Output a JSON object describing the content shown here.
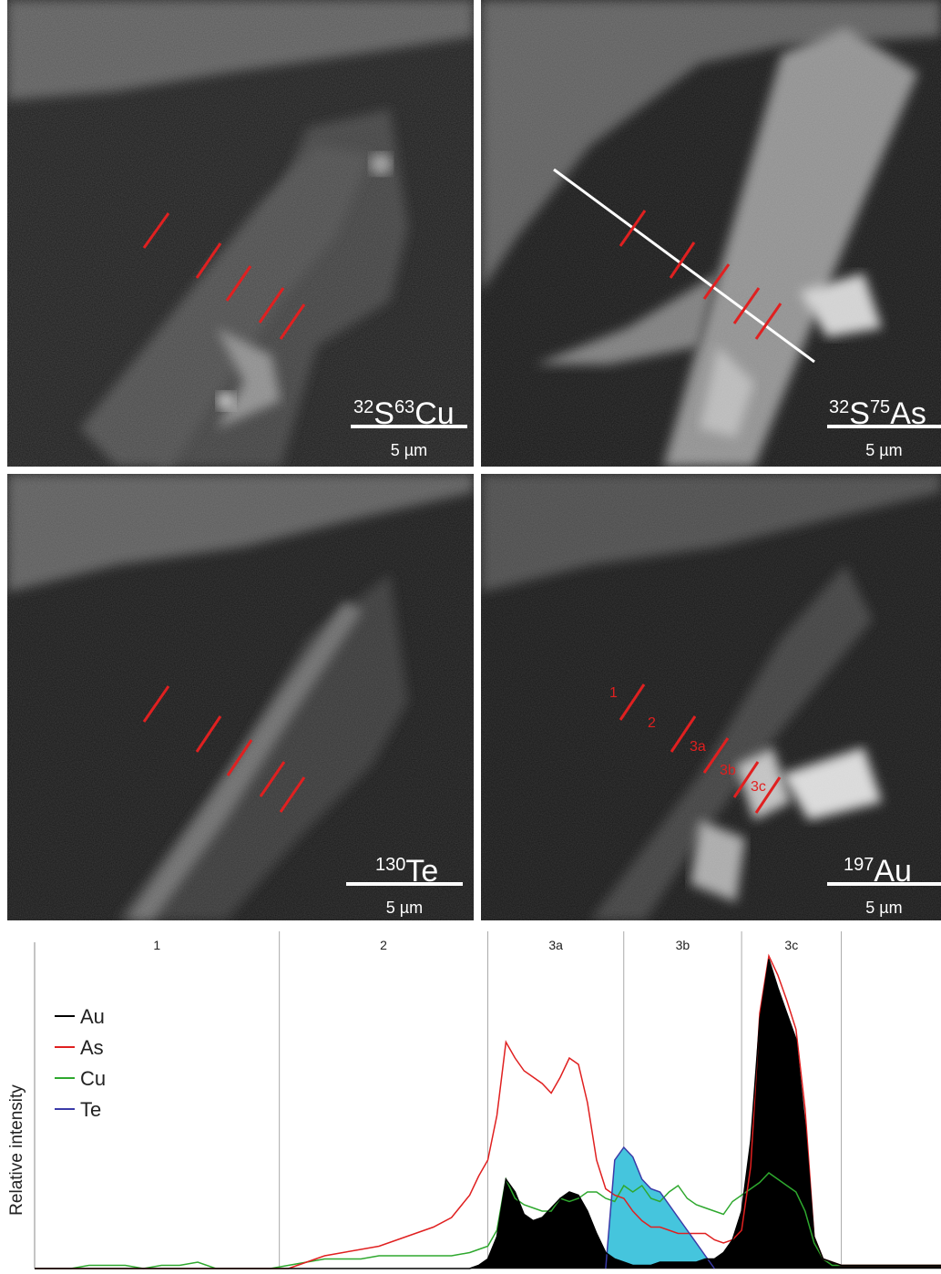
{
  "panels": [
    {
      "id": "cu",
      "element_sup": "32",
      "element": "S",
      "element2_sup": "63",
      "element2": "Cu",
      "scale": "5 µm"
    },
    {
      "id": "as",
      "element_sup": "32",
      "element": "S",
      "element2_sup": "75",
      "element2": "As",
      "scale": "5 µm"
    },
    {
      "id": "te",
      "element_sup": "130",
      "element": "Te",
      "element2_sup": "",
      "element2": "",
      "scale": "5 µm"
    },
    {
      "id": "au",
      "element_sup": "197",
      "element": "Au",
      "element2_sup": "",
      "element2": "",
      "scale": "5 µm"
    }
  ],
  "au_region_labels": [
    "1",
    "2",
    "3a",
    "3b",
    "3c"
  ],
  "colors": {
    "Au": "#000000",
    "As": "#e02020",
    "Cu": "#2ea82e",
    "Te": "#3a3aa8",
    "te_fill": "#45c5dd",
    "marker": "#e02020",
    "profile_line": "#ffffff"
  },
  "chart_data": {
    "type": "line",
    "ylabel": "Relative intensity",
    "xlabel": "",
    "x_units": "index along profile (0–100)",
    "ylim": [
      0,
      100
    ],
    "segments": [
      {
        "label": "1",
        "start": 0,
        "end": 27
      },
      {
        "label": "2",
        "start": 27,
        "end": 50
      },
      {
        "label": "3a",
        "start": 50,
        "end": 65
      },
      {
        "label": "3b",
        "start": 65,
        "end": 78
      },
      {
        "label": "3c",
        "start": 78,
        "end": 89
      }
    ],
    "x": [
      0,
      2,
      4,
      6,
      8,
      10,
      12,
      14,
      16,
      18,
      20,
      22,
      24,
      26,
      28,
      30,
      32,
      34,
      36,
      38,
      40,
      42,
      44,
      46,
      48,
      49,
      50,
      51,
      52,
      53,
      54,
      55,
      56,
      57,
      58,
      59,
      60,
      61,
      62,
      63,
      64,
      65,
      66,
      67,
      68,
      69,
      70,
      71,
      72,
      73,
      74,
      75,
      76,
      77,
      78,
      79,
      80,
      81,
      82,
      83,
      84,
      85,
      86,
      87,
      88,
      89,
      90,
      92,
      94,
      96,
      98,
      100
    ],
    "series": [
      {
        "name": "Au",
        "values": [
          0,
          0,
          0,
          0,
          0,
          0,
          0,
          0,
          0,
          0,
          0,
          0,
          0,
          0,
          0,
          0,
          0,
          0,
          0,
          0,
          0,
          0,
          0,
          0,
          0,
          1,
          3,
          10,
          28,
          24,
          17,
          15,
          16,
          19,
          22,
          24,
          23,
          18,
          11,
          5,
          3,
          2,
          1,
          1,
          1,
          2,
          2,
          2,
          2,
          2,
          3,
          3,
          5,
          9,
          18,
          40,
          78,
          97,
          88,
          80,
          72,
          45,
          10,
          3,
          2,
          1,
          1,
          1,
          1,
          1,
          1,
          1
        ]
      },
      {
        "name": "As",
        "values": [
          0,
          0,
          0,
          0,
          0,
          0,
          0,
          0,
          0,
          0,
          0,
          0,
          0,
          0,
          0,
          2,
          4,
          5,
          6,
          7,
          9,
          11,
          13,
          16,
          23,
          29,
          34,
          48,
          71,
          66,
          62,
          60,
          58,
          55,
          60,
          66,
          64,
          52,
          34,
          25,
          23,
          22,
          18,
          15,
          13,
          13,
          12,
          11,
          11,
          11,
          11,
          9,
          8,
          9,
          12,
          32,
          80,
          98,
          92,
          84,
          75,
          50,
          10,
          3,
          2,
          1,
          1,
          1,
          1,
          1,
          1,
          1
        ]
      },
      {
        "name": "Cu",
        "values": [
          0,
          0,
          0,
          1,
          1,
          1,
          0,
          1,
          1,
          2,
          0,
          0,
          0,
          0,
          1,
          2,
          3,
          3,
          3,
          4,
          4,
          4,
          4,
          4,
          5,
          6,
          7,
          12,
          28,
          22,
          20,
          19,
          18,
          18,
          22,
          21,
          22,
          24,
          24,
          22,
          21,
          26,
          24,
          26,
          22,
          21,
          24,
          26,
          22,
          20,
          19,
          18,
          17,
          21,
          23,
          25,
          27,
          30,
          28,
          26,
          24,
          18,
          8,
          3,
          1,
          1,
          1,
          1,
          1,
          1,
          1,
          1
        ]
      },
      {
        "name": "Te",
        "values": [
          0,
          0,
          0,
          0,
          0,
          0,
          0,
          0,
          0,
          0,
          0,
          0,
          0,
          0,
          0,
          0,
          0,
          0,
          0,
          0,
          0,
          0,
          0,
          0,
          0,
          0,
          0,
          0,
          0,
          0,
          0,
          0,
          0,
          0,
          0,
          0,
          0,
          0,
          0,
          0,
          34,
          38,
          35,
          28,
          25,
          24,
          20,
          16,
          12,
          8,
          4,
          0,
          0,
          0,
          0,
          0,
          0,
          0,
          0,
          0,
          0,
          0,
          0,
          0,
          0,
          0,
          0,
          0,
          0,
          0,
          0,
          0
        ]
      }
    ]
  }
}
